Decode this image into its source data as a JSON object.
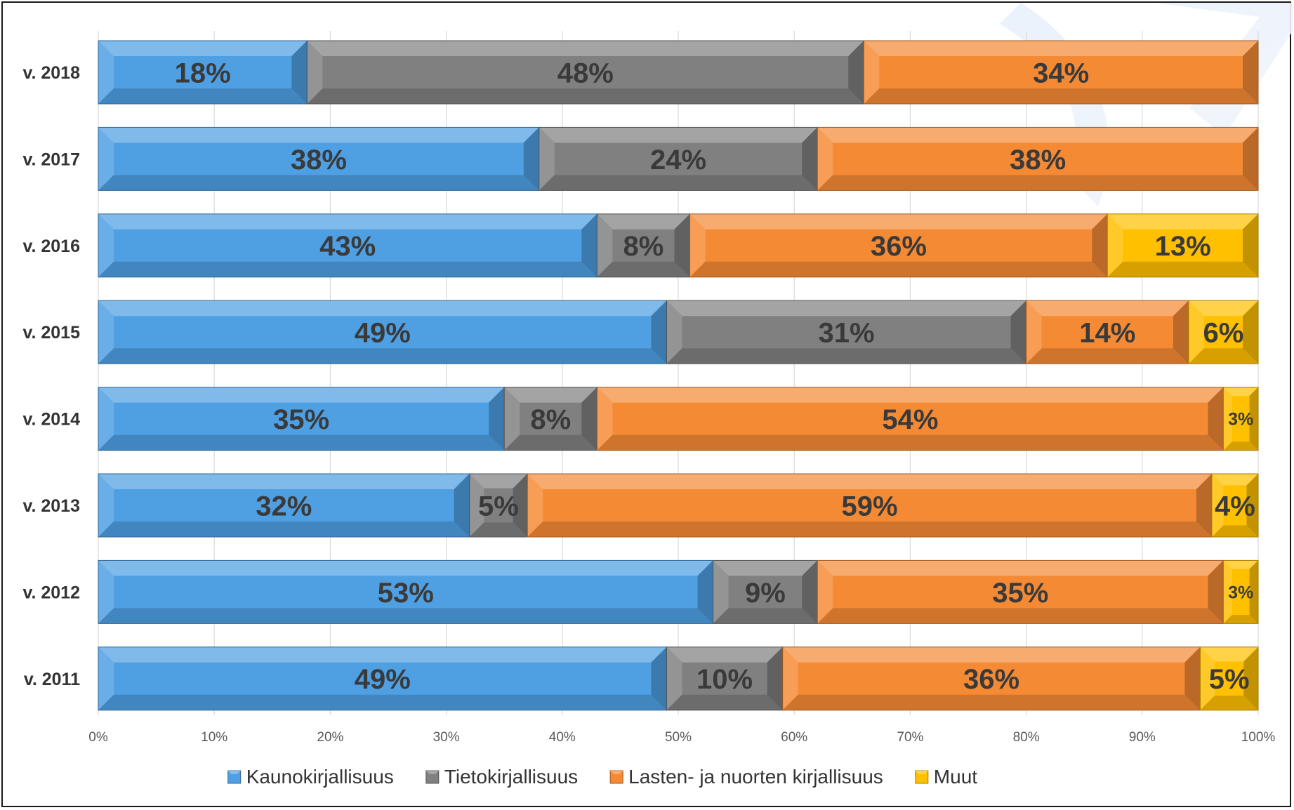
{
  "chart_data": {
    "type": "bar",
    "orientation": "horizontal",
    "stacked": "percent",
    "categories": [
      "v. 2018",
      "v. 2017",
      "v. 2016",
      "v. 2015",
      "v. 2014",
      "v. 2013",
      "v. 2012",
      "v. 2011"
    ],
    "series": [
      {
        "name": "Kaunokirjallisuus",
        "color": "#4f9fe3",
        "values": [
          18,
          38,
          43,
          49,
          35,
          32,
          53,
          49
        ],
        "labels": [
          "18%",
          "38%",
          "43%",
          "49%",
          "35%",
          "32%",
          "53%",
          "49%"
        ]
      },
      {
        "name": "Tietokirjallisuus",
        "color": "#808080",
        "values": [
          48,
          24,
          8,
          31,
          8,
          5,
          9,
          10
        ],
        "labels": [
          "48%",
          "24%",
          "8%",
          "31%",
          "8%",
          "5%",
          "9%",
          "10%"
        ]
      },
      {
        "name": "Lasten- ja nuorten kirjallisuus",
        "color": "#f58a35",
        "values": [
          34,
          38,
          36,
          14,
          54,
          59,
          35,
          36
        ],
        "labels": [
          "34%",
          "38%",
          "36%",
          "14%",
          "54%",
          "59%",
          "35%",
          "36%"
        ]
      },
      {
        "name": "Muut",
        "color": "#ffc000",
        "values": [
          0,
          0,
          13,
          6,
          3,
          4,
          3,
          5
        ],
        "labels": [
          "",
          "",
          "13%",
          "6%",
          "3%",
          "4%",
          "3%",
          "5%"
        ]
      }
    ],
    "xlim": [
      0,
      100
    ],
    "x_ticks": [
      "0%",
      "10%",
      "20%",
      "30%",
      "40%",
      "50%",
      "60%",
      "70%",
      "80%",
      "90%",
      "100%"
    ],
    "grid": true,
    "legend": "bottom"
  }
}
